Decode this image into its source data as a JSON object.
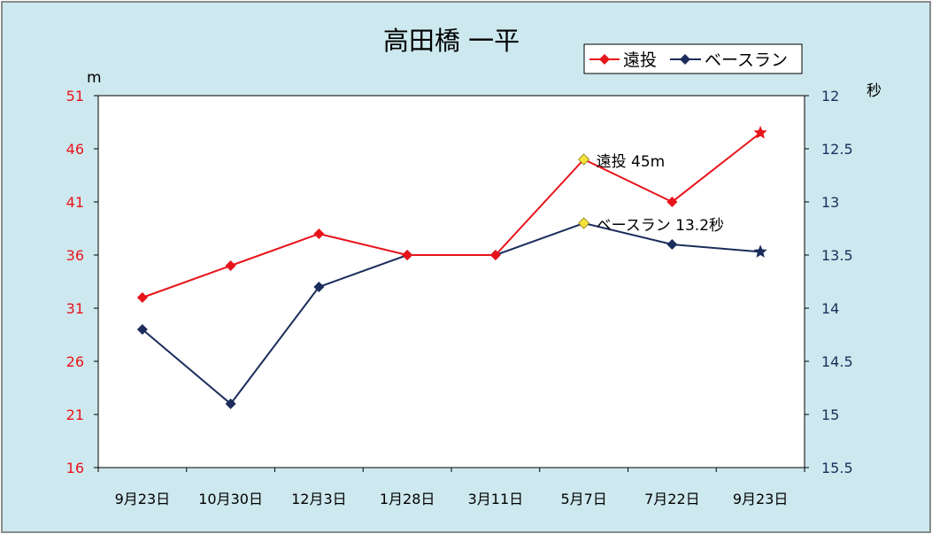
{
  "chart_data": {
    "type": "line",
    "title": "高田橋 一平",
    "categories": [
      "9月23日",
      "10月30日",
      "12月3日",
      "1月28日",
      "3月11日",
      "5月7日",
      "7月22日",
      "9月23日"
    ],
    "left_axis": {
      "unit": "m",
      "range": [
        16,
        51
      ],
      "ticks": [
        51,
        46,
        41,
        36,
        31,
        26,
        21,
        16
      ]
    },
    "right_axis": {
      "unit": "秒",
      "range": [
        15.5,
        12
      ],
      "ticks": [
        "12",
        "12.5",
        "13",
        "13.5",
        "14",
        "14.5",
        "15",
        "15.5"
      ],
      "reversed": true
    },
    "series": [
      {
        "name": "遠投",
        "axis": "left",
        "color": "#e8141b",
        "marker": "diamond",
        "values": [
          32,
          35,
          38,
          36,
          36,
          45,
          41,
          47.5
        ],
        "last_marker": "star",
        "highlight_index": 5,
        "annotation": "遠投 45m"
      },
      {
        "name": "ベースラン",
        "axis": "right",
        "color": "#1c2d5c",
        "marker": "diamond",
        "values": [
          14.2,
          14.9,
          13.8,
          13.5,
          13.5,
          13.2,
          13.4,
          13.47
        ],
        "last_marker": "star",
        "highlight_index": 5,
        "annotation": "ベースラン 13.2秒"
      }
    ],
    "legend": "top-right",
    "grid": false,
    "colors": {
      "frame_bg": "#cde8ee",
      "plot_bg": "#ffffff",
      "highlight": "#f5e33a"
    }
  }
}
